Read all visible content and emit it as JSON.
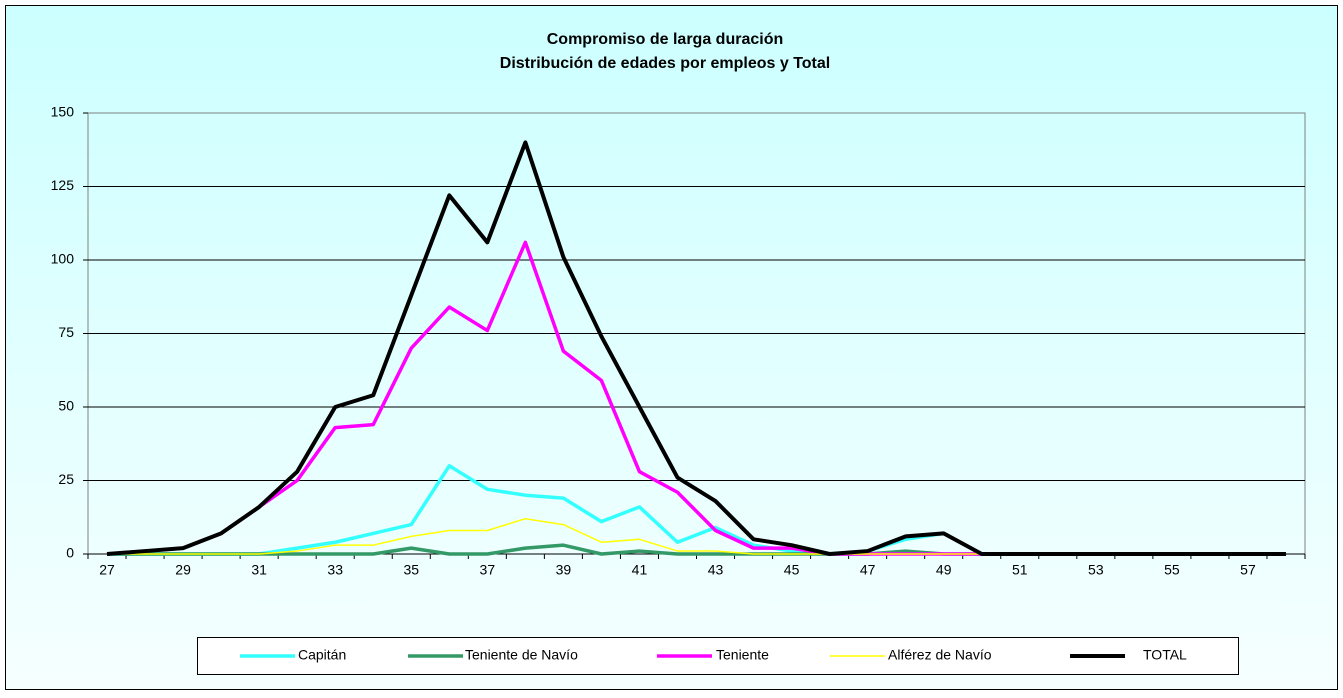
{
  "chart_data": {
    "type": "line",
    "title": "Compromiso de larga duración",
    "subtitle": "Distribución de edades por empleos y Total",
    "categories": [
      27,
      null,
      29,
      null,
      31,
      null,
      33,
      null,
      35,
      null,
      37,
      null,
      39,
      null,
      41,
      null,
      43,
      null,
      45,
      null,
      47,
      null,
      49,
      null,
      51,
      null,
      53,
      null,
      55,
      null,
      57,
      null
    ],
    "series": [
      {
        "name": "Capitán",
        "color": "#33ffff",
        "width": 3.5,
        "values": [
          0,
          0,
          0,
          0,
          0,
          2,
          4,
          7,
          10,
          30,
          22,
          20,
          19,
          11,
          16,
          4,
          9,
          3,
          1,
          0,
          1,
          5,
          7,
          0,
          null,
          null,
          null,
          null,
          null,
          null,
          null,
          null
        ]
      },
      {
        "name": "Teniente de Navío",
        "color": "#339966",
        "width": 3.5,
        "values": [
          0,
          0,
          0,
          0,
          0,
          0,
          0,
          0,
          2,
          0,
          0,
          2,
          3,
          0,
          1,
          0,
          0,
          0,
          0,
          0,
          0,
          1,
          0,
          0,
          null,
          null,
          null,
          null,
          null,
          null,
          null,
          null
        ]
      },
      {
        "name": "Teniente",
        "color": "#ff00ff",
        "width": 3.5,
        "values": [
          0,
          1,
          2,
          7,
          16,
          25,
          43,
          44,
          70,
          84,
          76,
          106,
          69,
          59,
          28,
          21,
          8,
          2,
          2,
          0,
          0,
          0,
          0,
          0,
          null,
          null,
          null,
          null,
          null,
          null,
          null,
          null
        ]
      },
      {
        "name": "Alférez de Navío",
        "color": "#ffff00",
        "width": 1.5,
        "values": [
          0,
          0,
          0,
          0,
          0,
          1,
          3,
          3,
          6,
          8,
          8,
          12,
          10,
          4,
          5,
          1,
          1,
          0,
          0,
          0,
          0,
          0,
          0,
          0,
          null,
          null,
          null,
          null,
          null,
          null,
          null,
          null
        ]
      },
      {
        "name": "TOTAL",
        "color": "#000000",
        "width": 4,
        "values": [
          0,
          1,
          2,
          7,
          16,
          28,
          50,
          54,
          88,
          122,
          106,
          140,
          101,
          74,
          50,
          26,
          18,
          5,
          3,
          0,
          1,
          6,
          7,
          0,
          0,
          0,
          0,
          0,
          0,
          0,
          0,
          0
        ]
      }
    ],
    "ylim": [
      0,
      150
    ],
    "yticks": [
      0,
      25,
      50,
      75,
      100,
      125,
      150
    ],
    "grid": true,
    "legend": "bottom"
  }
}
